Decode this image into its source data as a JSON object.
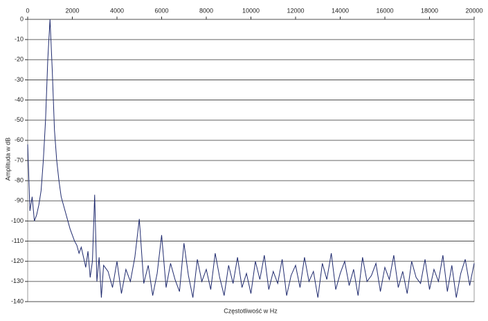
{
  "chart_data": {
    "type": "line",
    "xlabel": "Częstotliwość w Hz",
    "ylabel": "Amplituda w dB",
    "x": [
      0,
      100,
      200,
      300,
      400,
      500,
      600,
      700,
      800,
      900,
      1000,
      1100,
      1200,
      1300,
      1400,
      1500,
      1600,
      1700,
      1800,
      1900,
      2000,
      2100,
      2200,
      2300,
      2400,
      2500,
      2600,
      2700,
      2800,
      2900,
      3000,
      3100,
      3200,
      3300,
      3400,
      3600,
      3800,
      4000,
      4200,
      4400,
      4600,
      4800,
      5000,
      5200,
      5400,
      5600,
      5800,
      6000,
      6200,
      6400,
      6600,
      6800,
      7000,
      7200,
      7400,
      7600,
      7800,
      8000,
      8200,
      8400,
      8600,
      8800,
      9000,
      9200,
      9400,
      9600,
      9800,
      10000,
      10200,
      10400,
      10600,
      10800,
      11000,
      11200,
      11400,
      11600,
      11800,
      12000,
      12200,
      12400,
      12600,
      12800,
      13000,
      13200,
      13400,
      13600,
      13800,
      14000,
      14200,
      14400,
      14600,
      14800,
      15000,
      15200,
      15400,
      15600,
      15800,
      16000,
      16200,
      16400,
      16600,
      16800,
      17000,
      17200,
      17400,
      17600,
      17800,
      18000,
      18200,
      18400,
      18600,
      18800,
      19000,
      19200,
      19400,
      19600,
      19800,
      20000
    ],
    "series": [
      {
        "name": "Amplituda",
        "color": "#1f2a6e",
        "values": [
          -62,
          -95,
          -88,
          -100,
          -97,
          -92,
          -85,
          -70,
          -50,
          -20,
          0,
          -25,
          -55,
          -70,
          -80,
          -88,
          -92,
          -96,
          -100,
          -104,
          -107,
          -110,
          -112,
          -116,
          -113,
          -118,
          -123,
          -115,
          -128,
          -120,
          -87,
          -130,
          -118,
          -138,
          -122,
          -125,
          -133,
          -120,
          -136,
          -124,
          -130,
          -118,
          -99,
          -131,
          -122,
          -137,
          -126,
          -107,
          -133,
          -121,
          -129,
          -135,
          -111,
          -127,
          -138,
          -119,
          -130,
          -124,
          -134,
          -116,
          -128,
          -137,
          -122,
          -131,
          -118,
          -133,
          -126,
          -136,
          -120,
          -129,
          -117,
          -134,
          -125,
          -131,
          -119,
          -137,
          -127,
          -122,
          -133,
          -118,
          -130,
          -125,
          -138,
          -121,
          -129,
          -116,
          -134,
          -126,
          -120,
          -132,
          -124,
          -137,
          -118,
          -130,
          -127,
          -121,
          -135,
          -123,
          -129,
          -117,
          -133,
          -125,
          -136,
          -120,
          -128,
          -131,
          -119,
          -134,
          -124,
          -130,
          -117,
          -135,
          -122,
          -138,
          -126,
          -119,
          -132,
          -121
        ]
      }
    ],
    "xlim": [
      0,
      20000
    ],
    "xticks": [
      0,
      2000,
      4000,
      6000,
      8000,
      10000,
      12000,
      14000,
      16000,
      18000,
      20000
    ],
    "ylim": [
      -140,
      0
    ],
    "yticks": [
      0,
      -10,
      -20,
      -30,
      -40,
      -50,
      -60,
      -70,
      -80,
      -90,
      -100,
      -110,
      -120,
      -130,
      -140
    ],
    "grid": true
  }
}
